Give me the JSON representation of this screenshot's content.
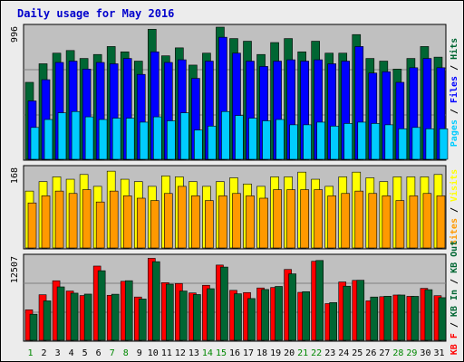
{
  "chart_data": {
    "type": "bar",
    "title": "Daily usage for May 2016",
    "categories": [
      "1",
      "2",
      "3",
      "4",
      "5",
      "6",
      "7",
      "8",
      "9",
      "10",
      "11",
      "12",
      "13",
      "14",
      "15",
      "16",
      "17",
      "18",
      "19",
      "20",
      "21",
      "22",
      "23",
      "24",
      "25",
      "26",
      "27",
      "28",
      "29",
      "30",
      "31"
    ],
    "weekend_days": [
      "1",
      "7",
      "8",
      "14",
      "15",
      "21",
      "22",
      "28",
      "29"
    ],
    "colors": {
      "title": "#0000cc",
      "pages": "#00ccff",
      "files": "#0000ff",
      "hits": "#006633",
      "visits": "#ffff00",
      "sites": "#ff9900",
      "kb_in": "#00cc66",
      "kb_out": "#006633",
      "kb_f": "#ff0000",
      "kb_f_alt": "#ffff00",
      "day_weekday": "#000000",
      "day_weekend": "#008800",
      "plot_bg": "#c0c0c0",
      "page_bg": "#ececec"
    },
    "panels": [
      {
        "id": "hits",
        "ymax_label": "996",
        "ymax": 996,
        "legend_right": "Pages / Files / Hits",
        "series": [
          {
            "name": "Hits",
            "values": [
              580,
              720,
              800,
              820,
              760,
              790,
              850,
              810,
              740,
              980,
              780,
              840,
              710,
              800,
              1010,
              910,
              890,
              790,
              880,
              910,
              810,
              890,
              800,
              800,
              940,
              760,
              740,
              680,
              760,
              850,
              770
            ]
          },
          {
            "name": "Files",
            "values": [
              440,
              600,
              730,
              740,
              680,
              730,
              720,
              760,
              640,
              810,
              730,
              750,
              610,
              740,
              920,
              800,
              740,
              700,
              740,
              750,
              740,
              750,
              720,
              740,
              850,
              650,
              660,
              580,
              690,
              760,
              690
            ]
          },
          {
            "name": "Pages",
            "values": [
              240,
              300,
              350,
              360,
              320,
              300,
              310,
              310,
              280,
              320,
              290,
              350,
              220,
              250,
              360,
              330,
              310,
              290,
              300,
              260,
              260,
              280,
              250,
              270,
              280,
              270,
              260,
              230,
              240,
              230,
              230
            ]
          }
        ]
      },
      {
        "id": "visits",
        "ymax_label": "168",
        "ymax": 168,
        "legend_right": "Visits / Sites",
        "series": [
          {
            "name": "Visits",
            "values": [
              120,
              140,
              150,
              145,
              155,
              130,
              162,
              145,
              140,
              130,
              152,
              150,
              140,
              130,
              140,
              148,
              135,
              130,
              150,
              150,
              160,
              145,
              130,
              150,
              160,
              148,
              140,
              150,
              150,
              150,
              155
            ]
          },
          {
            "name": "Sites",
            "values": [
              95,
              110,
              120,
              115,
              123,
              97,
              120,
              110,
              105,
              100,
              115,
              130,
              110,
              100,
              110,
              115,
              110,
              105,
              123,
              123,
              123,
              123,
              110,
              115,
              120,
              115,
              110,
              100,
              110,
              115,
              110
            ]
          }
        ]
      },
      {
        "id": "kbytes",
        "ymax_label": "12507",
        "ymax": 12507,
        "legend_right": "KB F / KB In / KB Out",
        "series": [
          {
            "name": "KB F",
            "values": [
              4580,
              6840,
              8940,
              7400,
              6720,
              11150,
              6760,
              8860,
              6500,
              12310,
              8660,
              8530,
              7110,
              8260,
              11300,
              7500,
              7170,
              7860,
              7930,
              10640,
              7200,
              11870,
              5510,
              8760,
              9000,
              5920,
              6550,
              6800,
              6600,
              7800,
              6700
            ]
          },
          {
            "name": "KB In",
            "values": [
              3920,
              5920,
              8020,
              7080,
              6940,
              10450,
              6920,
              8950,
              6200,
              11810,
              8430,
              7400,
              6870,
              7750,
              11000,
              6990,
              6270,
              7630,
              8090,
              9980,
              7300,
              11990,
              5660,
              8130,
              9020,
              6500,
              6620,
              6800,
              6600,
              7600,
              6400
            ]
          }
        ]
      }
    ],
    "xlabel": "",
    "ylabel": ""
  }
}
